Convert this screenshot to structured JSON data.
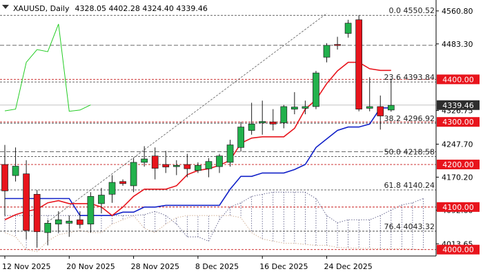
{
  "header": {
    "symbol": "XAUUSD",
    "timeframe": "Daily",
    "ohlc": "4328.05 4402.28 4324.40 4339.46"
  },
  "colors": {
    "bull": "#22b14c",
    "bear": "#e8141c",
    "tenkan": "#e8141c",
    "kijun": "#1020c8",
    "chikou": "#22cc22",
    "cloud": "#4a4a7a",
    "level_badge": "#e8141c",
    "price_badge": "#2d2d2d"
  },
  "chart_data": {
    "type": "candlestick",
    "title": "XAUUSD, Daily",
    "ylim": [
      3985,
      4580
    ],
    "y_ticks": [
      4560.8,
      4483.3,
      4326.75,
      4247.7,
      4170.2,
      4092.6,
      4013.65
    ],
    "x_labels": [
      {
        "date": "12 Nov 2025",
        "index": 0
      },
      {
        "date": "20 Nov 2025",
        "index": 6
      },
      {
        "date": "28 Nov 2025",
        "index": 12
      },
      {
        "date": "8 Dec 2025",
        "index": 18
      },
      {
        "date": "16 Dec 2025",
        "index": 24
      },
      {
        "date": "24 Dec 2025",
        "index": 30
      }
    ],
    "grid": false,
    "candles": [
      {
        "o": 4200,
        "h": 4246,
        "l": 4080,
        "c": 4138
      },
      {
        "o": 4174,
        "h": 4240,
        "l": 4160,
        "c": 4196
      },
      {
        "o": 4178,
        "h": 4210,
        "l": 4024,
        "c": 4045
      },
      {
        "o": 4130,
        "h": 4140,
        "l": 4005,
        "c": 4042
      },
      {
        "o": 4040,
        "h": 4070,
        "l": 4010,
        "c": 4062
      },
      {
        "o": 4060,
        "h": 4090,
        "l": 4040,
        "c": 4070
      },
      {
        "o": 4062,
        "h": 4080,
        "l": 4030,
        "c": 4067
      },
      {
        "o": 4070,
        "h": 4090,
        "l": 4050,
        "c": 4059
      },
      {
        "o": 4060,
        "h": 4135,
        "l": 4040,
        "c": 4125
      },
      {
        "o": 4108,
        "h": 4145,
        "l": 4085,
        "c": 4128
      },
      {
        "o": 4130,
        "h": 4175,
        "l": 4110,
        "c": 4158
      },
      {
        "o": 4160,
        "h": 4165,
        "l": 4150,
        "c": 4155
      },
      {
        "o": 4150,
        "h": 4215,
        "l": 4135,
        "c": 4205
      },
      {
        "o": 4205,
        "h": 4243,
        "l": 4195,
        "c": 4213
      },
      {
        "o": 4220,
        "h": 4240,
        "l": 4165,
        "c": 4191
      },
      {
        "o": 4200,
        "h": 4232,
        "l": 4180,
        "c": 4194
      },
      {
        "o": 4195,
        "h": 4210,
        "l": 4175,
        "c": 4198
      },
      {
        "o": 4200,
        "h": 4225,
        "l": 4170,
        "c": 4190
      },
      {
        "o": 4186,
        "h": 4205,
        "l": 4180,
        "c": 4198
      },
      {
        "o": 4190,
        "h": 4215,
        "l": 4170,
        "c": 4207
      },
      {
        "o": 4195,
        "h": 4225,
        "l": 4180,
        "c": 4220
      },
      {
        "o": 4205,
        "h": 4258,
        "l": 4195,
        "c": 4246
      },
      {
        "o": 4240,
        "h": 4300,
        "l": 4230,
        "c": 4288
      },
      {
        "o": 4280,
        "h": 4345,
        "l": 4270,
        "c": 4295
      },
      {
        "o": 4298,
        "h": 4350,
        "l": 4270,
        "c": 4301
      },
      {
        "o": 4300,
        "h": 4330,
        "l": 4280,
        "c": 4295
      },
      {
        "o": 4298,
        "h": 4340,
        "l": 4285,
        "c": 4336
      },
      {
        "o": 4330,
        "h": 4370,
        "l": 4318,
        "c": 4335
      },
      {
        "o": 4332,
        "h": 4350,
        "l": 4318,
        "c": 4336
      },
      {
        "o": 4336,
        "h": 4420,
        "l": 4330,
        "c": 4415
      },
      {
        "o": 4452,
        "h": 4485,
        "l": 4440,
        "c": 4480
      },
      {
        "o": 4482,
        "h": 4500,
        "l": 4470,
        "c": 4480
      },
      {
        "o": 4508,
        "h": 4540,
        "l": 4498,
        "c": 4532
      },
      {
        "o": 4540,
        "h": 4551,
        "l": 4325,
        "c": 4330
      },
      {
        "o": 4332,
        "h": 4405,
        "l": 4325,
        "c": 4336
      },
      {
        "o": 4336,
        "h": 4362,
        "l": 4282,
        "c": 4314
      },
      {
        "o": 4328,
        "h": 4402,
        "l": 4324,
        "c": 4339
      }
    ],
    "series": [
      {
        "name": "tenkan",
        "values": [
          4070,
          4082,
          4090,
          4095,
          4110,
          4115,
          4108,
          4108,
          4108,
          4100,
          4080,
          4100,
          4125,
          4142,
          4142,
          4142,
          4150,
          4176,
          4186,
          4190,
          4198,
          4210,
          4250,
          4262,
          4265,
          4265,
          4265,
          4285,
          4330,
          4352,
          4390,
          4420,
          4440,
          4440,
          4425,
          4421,
          4421
        ]
      },
      {
        "name": "kijun",
        "values": [
          4120,
          4120,
          4120,
          4120,
          4120,
          4120,
          4120,
          4080,
          4080,
          4080,
          4080,
          4088,
          4088,
          4100,
          4100,
          4104,
          4104,
          4104,
          4104,
          4104,
          4104,
          4142,
          4172,
          4172,
          4180,
          4180,
          4180,
          4188,
          4200,
          4240,
          4260,
          4280,
          4288,
          4288,
          4295,
          4333,
          4333
        ]
      },
      {
        "name": "chikou",
        "values": [
          4326,
          4330,
          4440,
          4470,
          4465,
          4530,
          4325,
          4328,
          4340
        ]
      },
      {
        "name": "span_a",
        "values": [
          4080,
          4080,
          4080,
          4080,
          4080,
          4080,
          4080,
          4080,
          4080,
          4080,
          4080,
          4080,
          4080,
          4082,
          4090,
          4080,
          4060,
          4030,
          4030,
          4020,
          4070,
          4100,
          4110,
          4125,
          4130,
          4135,
          4135,
          4135,
          4135,
          4120,
          4080,
          4063,
          4070,
          4070,
          4070,
          4080,
          4093,
          4105,
          4110,
          4120
        ]
      },
      {
        "name": "span_b",
        "values": [
          4040,
          4030,
          4000,
          3995,
          4020,
          4035,
          4040,
          4045,
          4040,
          4040,
          4060,
          4070,
          4080,
          4050,
          4040,
          4060,
          4075,
          4080,
          4080,
          4080,
          4080,
          4080,
          4075,
          4040,
          4025,
          4020,
          4015,
          4015,
          4012,
          4010,
          4010,
          4005,
          4004,
          4003,
          4003,
          4002,
          4002,
          4002,
          4001,
          4000
        ]
      }
    ],
    "trendline": {
      "from": {
        "index": 4,
        "price": 4065
      },
      "to": {
        "index": 30,
        "price": 4555
      }
    },
    "horizontal_levels": [
      4550.52,
      4480.0,
      4400.0,
      4393.84,
      4300.0,
      4296.92,
      4230.0,
      4218.58,
      4200.0,
      4140.24,
      4100.0,
      4043.32,
      4000.0
    ],
    "fib_labels": [
      {
        "text": "0.0 4550.52",
        "price": 4550.52
      },
      {
        "text": "23.6 4393.84",
        "price": 4393.84
      },
      {
        "text": "38.2 4296.92",
        "price": 4296.92
      },
      {
        "text": "50.0 4218.58",
        "price": 4218.58
      },
      {
        "text": "61.8 4140.24",
        "price": 4140.24
      },
      {
        "text": "76.4 4043.32",
        "price": 4043.32
      }
    ],
    "badges": [
      {
        "text": "4400.00",
        "price": 4400.0,
        "kind": "level"
      },
      {
        "text": "4339.46",
        "price": 4339.46,
        "kind": "price"
      },
      {
        "text": "4300.00",
        "price": 4300.0,
        "kind": "level"
      },
      {
        "text": "4200.00",
        "price": 4200.0,
        "kind": "level"
      },
      {
        "text": "4100.00",
        "price": 4100.0,
        "kind": "level"
      },
      {
        "text": "4000.00",
        "price": 4000.0,
        "kind": "level"
      }
    ]
  }
}
